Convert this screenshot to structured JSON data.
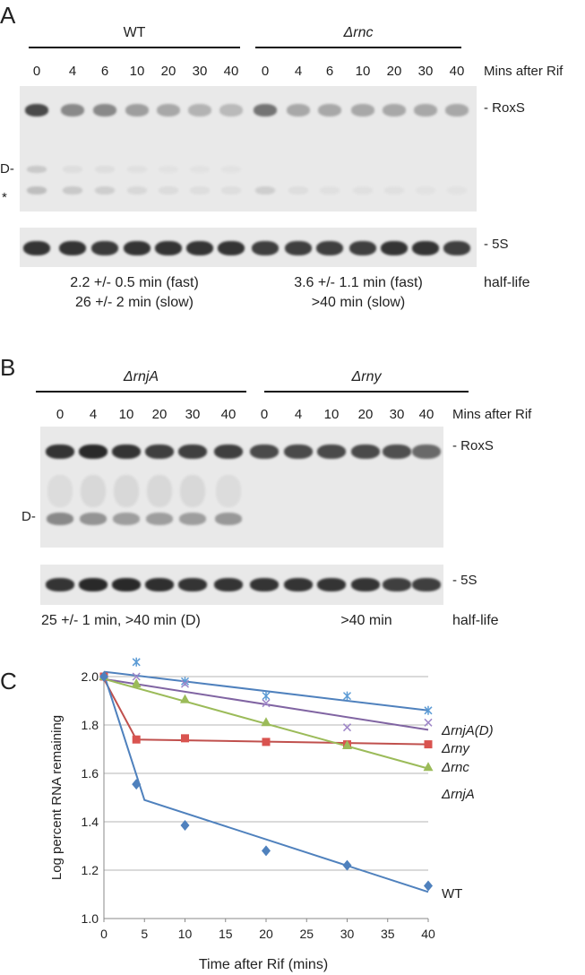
{
  "panelA": {
    "label": "A",
    "groups": [
      {
        "name": "WT"
      },
      {
        "name": "Δrnc"
      }
    ],
    "times": [
      "0",
      "4",
      "6",
      "10",
      "20",
      "30",
      "40",
      "0",
      "4",
      "6",
      "10",
      "20",
      "30",
      "40"
    ],
    "time_axis_label": "Mins after Rif",
    "band_labels": {
      "roxs": "- RoxS",
      "d": "D-",
      "star": "*",
      "s5": "- 5S"
    },
    "halflife_wt": [
      "2.2 +/- 0.5 min (fast)",
      "26 +/- 2 min (slow)"
    ],
    "halflife_rnc": [
      "3.6 +/- 1.1 min (fast)",
      ">40 min (slow)"
    ],
    "halflife_label": "half-life"
  },
  "panelB": {
    "label": "B",
    "groups": [
      {
        "name": "ΔrnjA"
      },
      {
        "name": "Δrny"
      }
    ],
    "times": [
      "0",
      "4",
      "10",
      "20",
      "30",
      "40",
      "0",
      "4",
      "10",
      "20",
      "30",
      "40"
    ],
    "time_axis_label": "Mins after Rif",
    "band_labels": {
      "roxs": "- RoxS",
      "d": "D-",
      "s5": "- 5S"
    },
    "halflife_rnja": "25 +/- 1 min, >40 min (D)",
    "halflife_rny": ">40 min",
    "halflife_label": "half-life"
  },
  "panelC": {
    "label": "C"
  },
  "chart_data": {
    "type": "scatter",
    "title": "",
    "xlabel": "Time after Rif (mins)",
    "ylabel": "Log percent RNA remaining",
    "xlim": [
      0,
      40
    ],
    "ylim": [
      1.0,
      2.0
    ],
    "xticks": [
      "0",
      "5",
      "10",
      "15",
      "20",
      "25",
      "30",
      "35",
      "40"
    ],
    "yticks": [
      "1.0",
      "1.2",
      "1.4",
      "1.6",
      "1.8",
      "2.0"
    ],
    "grid": true,
    "series": [
      {
        "name": "ΔrnjA(D)",
        "marker": "star",
        "color": "#5b9bd5",
        "x": [
          0,
          4,
          10,
          20,
          30,
          40
        ],
        "y": [
          2.0,
          2.06,
          1.98,
          1.92,
          1.92,
          1.86
        ],
        "fit": [
          [
            0,
            2.02
          ],
          [
            40,
            1.86
          ]
        ],
        "fit_color": "#4f81bd"
      },
      {
        "name": "Δrny",
        "marker": "x",
        "color": "#9e86c8",
        "x": [
          0,
          4,
          10,
          20,
          30,
          40
        ],
        "y": [
          2.0,
          2.0,
          1.97,
          1.89,
          1.79,
          1.81
        ],
        "fit": [
          [
            0,
            1.99
          ],
          [
            40,
            1.78
          ]
        ],
        "fit_color": "#8064a2"
      },
      {
        "name": "Δrnc",
        "marker": "square",
        "color": "#d9534f",
        "x": [
          0,
          4,
          10,
          20,
          30,
          40
        ],
        "y": [
          2.0,
          1.74,
          1.745,
          1.73,
          1.72,
          1.72
        ],
        "fit": [
          [
            0,
            1.99
          ],
          [
            4,
            1.74
          ],
          [
            40,
            1.72
          ]
        ],
        "fit_color": "#c0504d"
      },
      {
        "name": "ΔrnjA",
        "marker": "triangle",
        "color": "#9bbb59",
        "x": [
          0,
          4,
          10,
          20,
          30,
          40
        ],
        "y": [
          2.0,
          1.97,
          1.905,
          1.81,
          1.715,
          1.625
        ],
        "fit": [
          [
            0,
            1.99
          ],
          [
            40,
            1.62
          ]
        ],
        "fit_color": "#9bbb59"
      },
      {
        "name": "WT",
        "marker": "diamond",
        "color": "#4f81bd",
        "x": [
          0,
          4,
          10,
          20,
          30,
          40
        ],
        "y": [
          2.0,
          1.555,
          1.385,
          1.28,
          1.22,
          1.135
        ],
        "fit": [
          [
            0,
            2.01
          ],
          [
            5,
            1.49
          ],
          [
            40,
            1.11
          ]
        ],
        "fit_color": "#4f81bd"
      }
    ]
  }
}
